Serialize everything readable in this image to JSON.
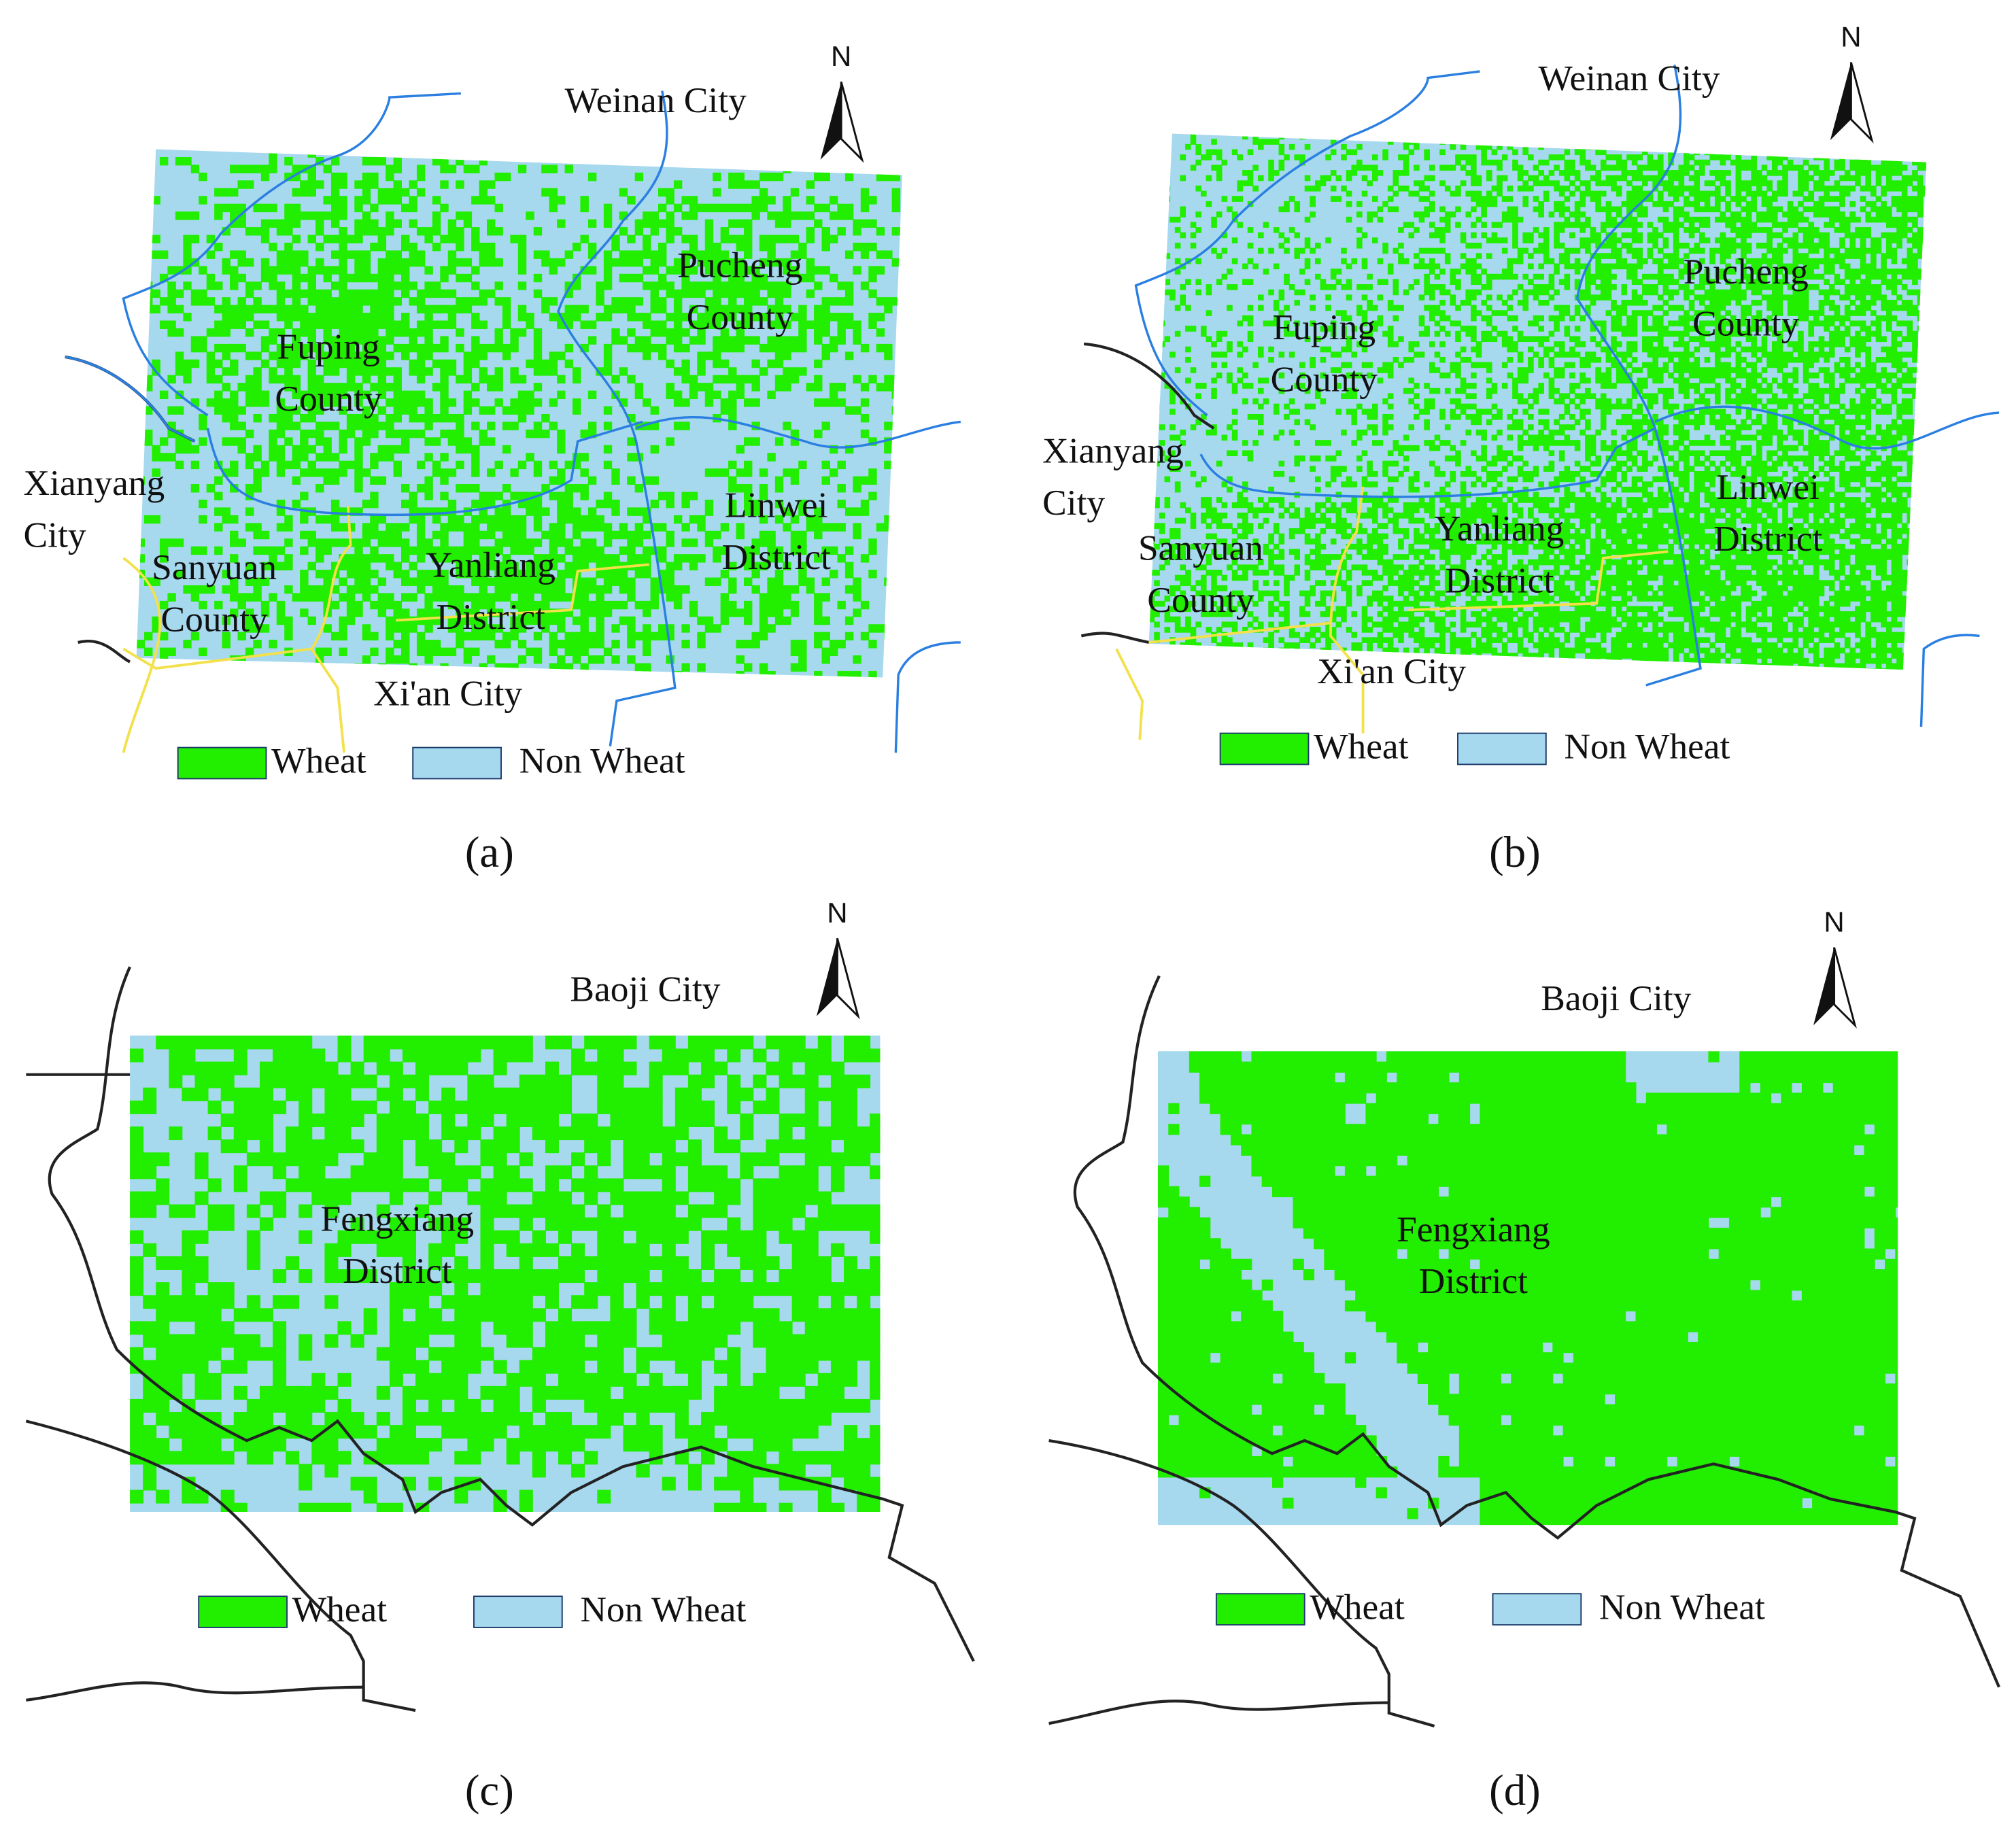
{
  "panels": [
    {
      "caption": "(a)",
      "north": "N",
      "legend": [
        "Wheat",
        "Non Wheat"
      ],
      "places": [
        {
          "lines": [
            "Weinan City"
          ]
        },
        {
          "lines": [
            "Pucheng",
            "County"
          ]
        },
        {
          "lines": [
            "Fuping",
            "County"
          ]
        },
        {
          "lines": [
            "Xianyang",
            "City"
          ]
        },
        {
          "lines": [
            "Linwei",
            "District"
          ]
        },
        {
          "lines": [
            "Sanyuan",
            "County"
          ]
        },
        {
          "lines": [
            "Yanliang",
            "District"
          ]
        },
        {
          "lines": [
            "Xi'an City"
          ]
        }
      ]
    },
    {
      "caption": "(b)",
      "north": "N",
      "legend": [
        "Wheat",
        "Non Wheat"
      ],
      "places": [
        {
          "lines": [
            "Weinan City"
          ]
        },
        {
          "lines": [
            "Pucheng",
            "County"
          ]
        },
        {
          "lines": [
            "Fuping",
            "County"
          ]
        },
        {
          "lines": [
            "Xianyang",
            "City"
          ]
        },
        {
          "lines": [
            "Linwei",
            "District"
          ]
        },
        {
          "lines": [
            "Yanliang",
            "District"
          ]
        },
        {
          "lines": [
            "Sanyuan",
            "County"
          ]
        },
        {
          "lines": [
            "Xi'an City"
          ]
        }
      ]
    },
    {
      "caption": "(c)",
      "north": "N",
      "legend": [
        "Wheat",
        "Non Wheat"
      ],
      "places": [
        {
          "lines": [
            "Baoji City"
          ]
        },
        {
          "lines": [
            "Fengxiang",
            "District"
          ]
        }
      ]
    },
    {
      "caption": "(d)",
      "north": "N",
      "legend": [
        "Wheat",
        "Non Wheat"
      ],
      "places": [
        {
          "lines": [
            "Baoji City"
          ]
        },
        {
          "lines": [
            "Fengxiang",
            "District"
          ]
        }
      ]
    }
  ]
}
